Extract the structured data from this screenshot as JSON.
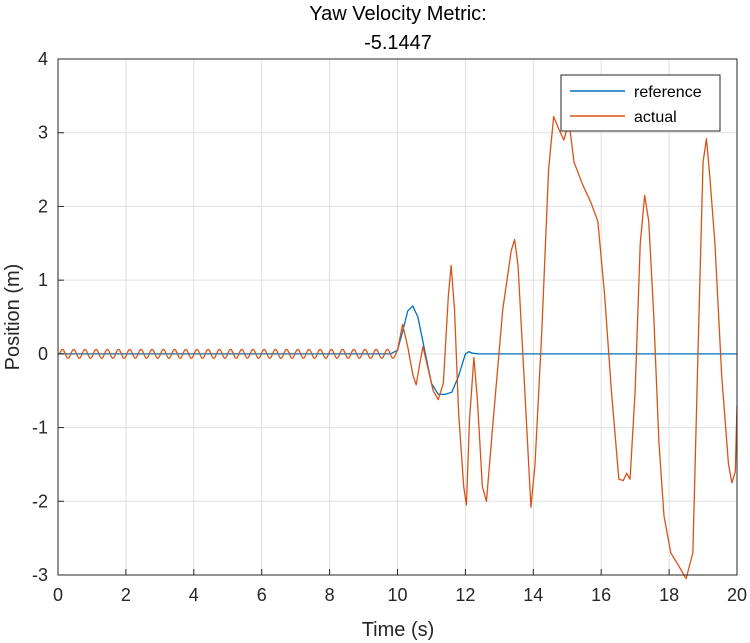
{
  "chart_data": {
    "type": "line",
    "title_lines": [
      "Yaw Velocity Metric:",
      "-5.1447"
    ],
    "xlabel": "Time (s)",
    "ylabel": "Position (m)",
    "xlim": [
      0,
      20
    ],
    "ylim": [
      -3,
      4
    ],
    "x_ticks": [
      0,
      2,
      4,
      6,
      8,
      10,
      12,
      14,
      16,
      18,
      20
    ],
    "y_ticks": [
      -3,
      -2,
      -1,
      0,
      1,
      2,
      3,
      4
    ],
    "grid": true,
    "legend_position": "top-right",
    "series": [
      {
        "name": "reference",
        "color": "#0072BD",
        "points": [
          [
            0,
            0
          ],
          [
            9.8,
            0
          ],
          [
            10.0,
            0.05
          ],
          [
            10.15,
            0.3
          ],
          [
            10.3,
            0.58
          ],
          [
            10.45,
            0.65
          ],
          [
            10.6,
            0.5
          ],
          [
            10.8,
            0.05
          ],
          [
            11.0,
            -0.4
          ],
          [
            11.2,
            -0.55
          ],
          [
            11.4,
            -0.55
          ],
          [
            11.6,
            -0.52
          ],
          [
            11.8,
            -0.3
          ],
          [
            12.0,
            0.0
          ],
          [
            12.1,
            0.03
          ],
          [
            12.2,
            0.01
          ],
          [
            12.4,
            0
          ],
          [
            20,
            0
          ]
        ]
      },
      {
        "name": "actual",
        "color": "#D95319",
        "points": [
          [
            0,
            0
          ],
          [
            10.0,
            0.3
          ],
          [
            10.15,
            0.4
          ],
          [
            10.3,
            0.1
          ],
          [
            10.45,
            -0.28
          ],
          [
            10.55,
            -0.42
          ],
          [
            10.65,
            -0.15
          ],
          [
            10.75,
            0.1
          ],
          [
            10.9,
            -0.2
          ],
          [
            11.05,
            -0.5
          ],
          [
            11.2,
            -0.62
          ],
          [
            11.35,
            -0.4
          ],
          [
            11.5,
            0.8
          ],
          [
            11.58,
            1.2
          ],
          [
            11.68,
            0.6
          ],
          [
            11.8,
            -0.8
          ],
          [
            11.95,
            -1.8
          ],
          [
            12.03,
            -2.05
          ],
          [
            12.12,
            -0.9
          ],
          [
            12.25,
            -0.05
          ],
          [
            12.35,
            -0.6
          ],
          [
            12.5,
            -1.8
          ],
          [
            12.62,
            -2.0
          ],
          [
            12.8,
            -1.0
          ],
          [
            13.1,
            0.6
          ],
          [
            13.35,
            1.4
          ],
          [
            13.45,
            1.55
          ],
          [
            13.55,
            1.2
          ],
          [
            13.75,
            -0.5
          ],
          [
            13.93,
            -2.08
          ],
          [
            14.05,
            -1.5
          ],
          [
            14.25,
            0.3
          ],
          [
            14.45,
            2.5
          ],
          [
            14.6,
            3.22
          ],
          [
            14.75,
            3.05
          ],
          [
            14.9,
            2.9
          ],
          [
            15.05,
            3.15
          ],
          [
            15.2,
            2.6
          ],
          [
            15.45,
            2.3
          ],
          [
            15.7,
            2.05
          ],
          [
            15.9,
            1.8
          ],
          [
            16.1,
            0.8
          ],
          [
            16.3,
            -0.5
          ],
          [
            16.52,
            -1.7
          ],
          [
            16.65,
            -1.72
          ],
          [
            16.75,
            -1.62
          ],
          [
            16.85,
            -1.7
          ],
          [
            17.0,
            -0.5
          ],
          [
            17.15,
            1.5
          ],
          [
            17.28,
            2.15
          ],
          [
            17.4,
            1.8
          ],
          [
            17.55,
            0.5
          ],
          [
            17.7,
            -1.2
          ],
          [
            17.85,
            -2.2
          ],
          [
            18.05,
            -2.7
          ],
          [
            18.25,
            -2.85
          ],
          [
            18.5,
            -3.05
          ],
          [
            18.7,
            -2.7
          ],
          [
            18.85,
            0.0
          ],
          [
            19.0,
            2.6
          ],
          [
            19.1,
            2.92
          ],
          [
            19.2,
            2.4
          ],
          [
            19.35,
            1.5
          ],
          [
            19.55,
            -0.3
          ],
          [
            19.75,
            -1.5
          ],
          [
            19.85,
            -1.75
          ],
          [
            19.95,
            -1.6
          ],
          [
            20.0,
            -0.7
          ]
        ],
        "pre_oscillation": {
          "t_start": 0.05,
          "t_end": 10.0,
          "period": 0.33,
          "amplitude": 0.06
        }
      }
    ]
  }
}
